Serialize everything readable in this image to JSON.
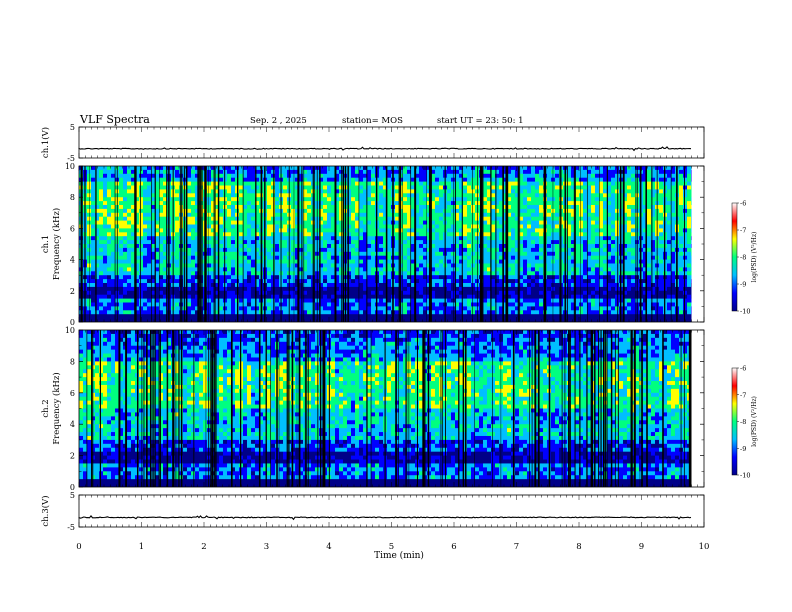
{
  "header": {
    "title": "VLF Spectra",
    "date": "Sep. 2 , 2025",
    "station": "station= MOS",
    "start_ut": "start  UT =   23: 50: 1"
  },
  "chart_data": [
    {
      "type": "line",
      "panel": "ch1-waveform",
      "ylabel": "ch.1(V)",
      "ylim": [
        -5,
        5
      ],
      "yticks": [
        "5",
        "-5"
      ],
      "baseline_value": -2
    },
    {
      "type": "heatmap",
      "panel": "ch1-spectrogram",
      "ylabel": "ch.1\nFrequency (kHz)",
      "ylim": [
        0,
        10
      ],
      "yticks": [
        "0",
        "2",
        "4",
        "6",
        "8",
        "10"
      ],
      "intense_band_khz": [
        5.5,
        9
      ],
      "colorbar": {
        "label": "log(PSD) (V²/Hz)",
        "range": [
          -10,
          -6
        ],
        "ticks": [
          "-6",
          "-7",
          "-8",
          "-9",
          "-10"
        ],
        "colors": [
          "#000088",
          "#0000ff",
          "#00bfff",
          "#00ff80",
          "#ffff00",
          "#ff0000",
          "#ffffff"
        ]
      }
    },
    {
      "type": "heatmap",
      "panel": "ch2-spectrogram",
      "ylabel": "ch.2\nFrequency (kHz)",
      "ylim": [
        0,
        10
      ],
      "yticks": [
        "0",
        "2",
        "4",
        "6",
        "8",
        "10"
      ],
      "intense_band_khz": [
        5,
        8
      ],
      "colorbar": {
        "label": "log(PSD) (V²/Hz)",
        "range": [
          -10,
          -6
        ],
        "ticks": [
          "-6",
          "-7",
          "-8",
          "-9",
          "-10"
        ]
      }
    },
    {
      "type": "line",
      "panel": "ch3-waveform",
      "ylabel": "ch.3(V)",
      "ylim": [
        -5,
        5
      ],
      "yticks": [
        "5",
        "-5"
      ],
      "baseline_value": -2
    }
  ],
  "x_axis": {
    "label": "Time  (min)",
    "range": [
      0,
      10
    ],
    "data_end": 9.8,
    "ticks": [
      "0",
      "1",
      "2",
      "3",
      "4",
      "5",
      "6",
      "7",
      "8",
      "9",
      "10"
    ]
  }
}
